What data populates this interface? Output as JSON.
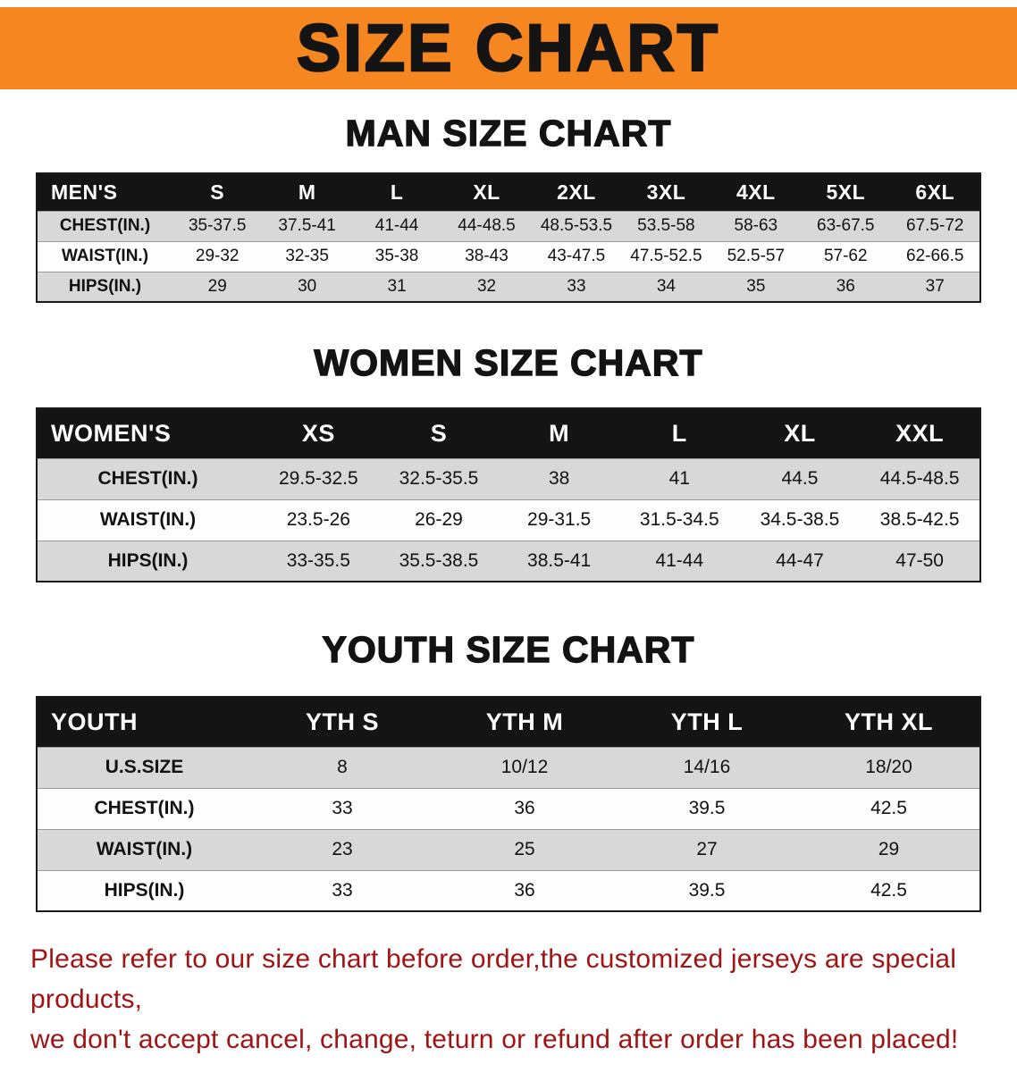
{
  "banner": {
    "title": "SIZE CHART",
    "background_color": "#F6861F",
    "text_color": "#141414"
  },
  "sections": {
    "men": {
      "heading": "MAN SIZE CHART",
      "table": {
        "header": [
          "MEN'S",
          "S",
          "M",
          "L",
          "XL",
          "2XL",
          "3XL",
          "4XL",
          "5XL",
          "6XL"
        ],
        "rows": [
          [
            "CHEST(IN.)",
            "35-37.5",
            "37.5-41",
            "41-44",
            "44-48.5",
            "48.5-53.5",
            "53.5-58",
            "58-63",
            "63-67.5",
            "67.5-72"
          ],
          [
            "WAIST(IN.)",
            "29-32",
            "32-35",
            "35-38",
            "38-43",
            "43-47.5",
            "47.5-52.5",
            "52.5-57",
            "57-62",
            "62-66.5"
          ],
          [
            "HIPS(IN.)",
            "29",
            "30",
            "31",
            "32",
            "33",
            "34",
            "35",
            "36",
            "37"
          ]
        ]
      }
    },
    "women": {
      "heading": "WOMEN SIZE CHART",
      "table": {
        "header": [
          "WOMEN'S",
          "XS",
          "S",
          "M",
          "L",
          "XL",
          "XXL"
        ],
        "rows": [
          [
            "CHEST(IN.)",
            "29.5-32.5",
            "32.5-35.5",
            "38",
            "41",
            "44.5",
            "44.5-48.5"
          ],
          [
            "WAIST(IN.)",
            "23.5-26",
            "26-29",
            "29-31.5",
            "31.5-34.5",
            "34.5-38.5",
            "38.5-42.5"
          ],
          [
            "HIPS(IN.)",
            "33-35.5",
            "35.5-38.5",
            "38.5-41",
            "41-44",
            "44-47",
            "47-50"
          ]
        ]
      }
    },
    "youth": {
      "heading": "YOUTH SIZE CHART",
      "table": {
        "header": [
          "YOUTH",
          "YTH S",
          "YTH M",
          "YTH L",
          "YTH XL"
        ],
        "rows": [
          [
            "U.S.SIZE",
            "8",
            "10/12",
            "14/16",
            "18/20"
          ],
          [
            "CHEST(IN.)",
            "33",
            "36",
            "39.5",
            "42.5"
          ],
          [
            "WAIST(IN.)",
            "23",
            "25",
            "27",
            "29"
          ],
          [
            "HIPS(IN.)",
            "33",
            "36",
            "39.5",
            "42.5"
          ]
        ]
      }
    }
  },
  "footer": {
    "line1": "Please refer to our size chart before order,the customized jerseys are special products,",
    "line2": "we don't accept cancel, change, teturn or refund after order has been placed!",
    "text_color": "#A01414"
  }
}
